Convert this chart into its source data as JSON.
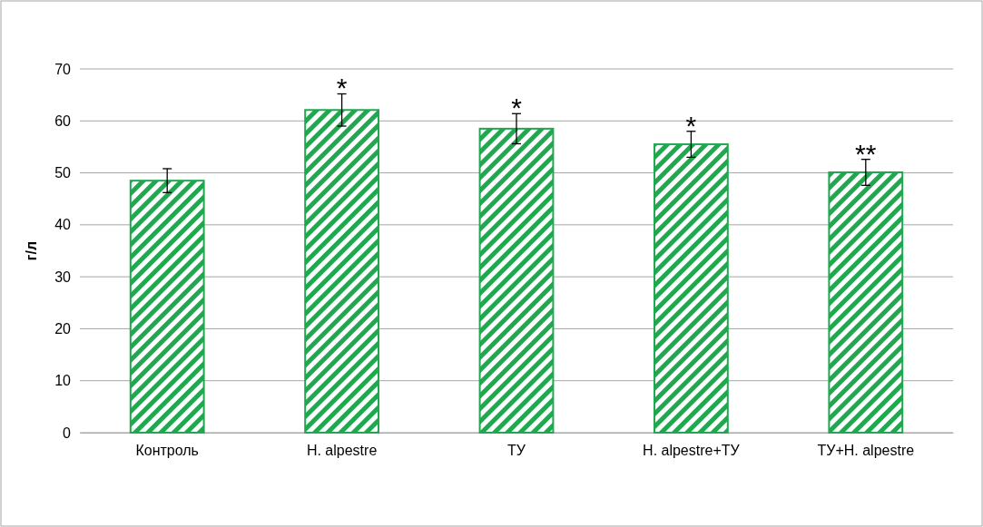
{
  "chart_data": {
    "type": "bar",
    "ylabel": "г/л",
    "categories": [
      "Контроль",
      "H. alpestre",
      "ТУ",
      "H. alpestre+ТУ",
      "ТУ+H. alpestre"
    ],
    "values": [
      48.5,
      62.1,
      58.5,
      55.5,
      50.1
    ],
    "errors": [
      2.3,
      3.1,
      2.9,
      2.5,
      2.5
    ],
    "color": "#1fa84f",
    "ylim": [
      0,
      70
    ],
    "yticks": [
      0,
      10,
      20,
      30,
      40,
      50,
      60,
      70
    ],
    "grid": "y",
    "annotations": [
      {
        "text": "*",
        "x": "H. alpestre",
        "y": 65.2
      },
      {
        "text": "*",
        "x": "ТУ",
        "y": 61.4
      },
      {
        "text": "*",
        "x": "H. alpestre+ТУ",
        "y": 58
      },
      {
        "text": "**",
        "x": "ТУ+H. alpestre",
        "y": 52.6
      }
    ]
  }
}
